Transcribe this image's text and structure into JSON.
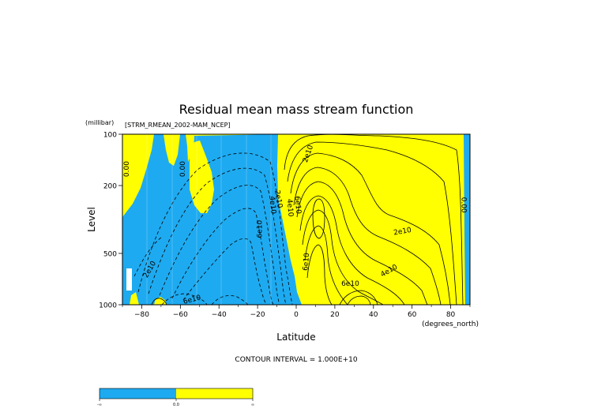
{
  "chart_data": {
    "type": "contour",
    "title": "Residual mean mass stream function",
    "subtitle": "[STRM_RMEAN_2002-MAM_NCEP]",
    "xlabel": "Latitude",
    "x_units": "(degrees_north)",
    "ylabel": "Level",
    "y_units": "(millibar)",
    "xlim": [
      -90,
      90
    ],
    "ylim": [
      1000,
      100
    ],
    "y_scale": "log",
    "x_ticks": [
      -80,
      -60,
      -40,
      -20,
      0,
      20,
      40,
      60,
      80
    ],
    "y_ticks": [
      100,
      200,
      500,
      1000
    ],
    "x_tick_labels": [
      "−80",
      "−60",
      "−40",
      "−20",
      "0",
      "20",
      "40",
      "60",
      "80"
    ],
    "y_tick_labels": [
      "100",
      "200",
      "500",
      "1000"
    ],
    "contour_interval_text": "CONTOUR INTERVAL = 1.000E+10",
    "fill_colors": {
      "negative": "#1eaaf0",
      "positive": "#ffff00"
    },
    "contour_labels": [
      {
        "text": "0.00",
        "lat": -88,
        "p": 160,
        "rot": -90
      },
      {
        "text": "0.00",
        "lat": -59,
        "p": 160,
        "rot": -90
      },
      {
        "text": "2e10",
        "lat": 6,
        "p": 130,
        "rot": -70
      },
      {
        "text": "4e10",
        "lat": -12,
        "p": 260,
        "rot": 85
      },
      {
        "text": "2e10",
        "lat": -9,
        "p": 240,
        "rot": 80
      },
      {
        "text": "6e10",
        "lat": 1,
        "p": 260,
        "rot": 85
      },
      {
        "text": "4e10",
        "lat": -3,
        "p": 270,
        "rot": 85
      },
      {
        "text": "6e10",
        "lat": -19,
        "p": 360,
        "rot": -90
      },
      {
        "text": "2e10",
        "lat": -76,
        "p": 620,
        "rot": -60
      },
      {
        "text": "6e10",
        "lat": -54,
        "p": 930,
        "rot": -15
      },
      {
        "text": "6e10",
        "lat": 5,
        "p": 560,
        "rot": -85
      },
      {
        "text": "2e10",
        "lat": 55,
        "p": 370,
        "rot": -10
      },
      {
        "text": "4e10",
        "lat": 48,
        "p": 630,
        "rot": -30
      },
      {
        "text": "6e10",
        "lat": 28,
        "p": 750,
        "rot": 0
      },
      {
        "text": "0.00",
        "lat": 87,
        "p": 260,
        "rot": 90
      }
    ],
    "colorbar": {
      "labels": [
        "-∞",
        "0.0",
        "∞"
      ]
    }
  }
}
